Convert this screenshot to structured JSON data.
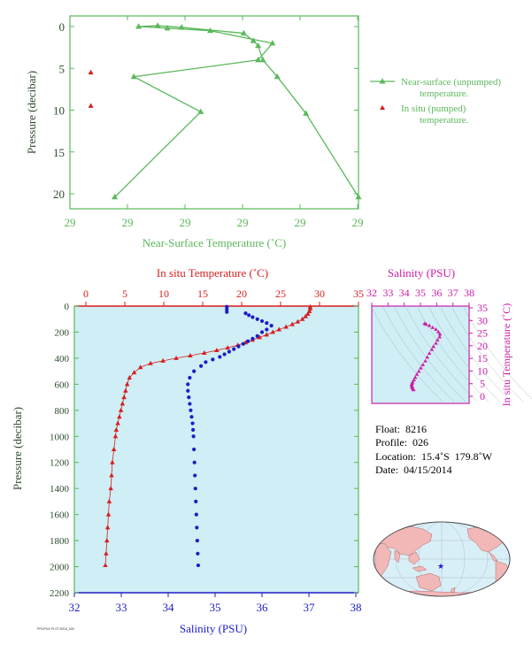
{
  "colors": {
    "green": "#5bb85b",
    "red": "#d81e1e",
    "blue": "#1c1cc8",
    "magenta": "#cc1fa6",
    "axis_dark": "#2e4a2e",
    "plot_bg": "#cfeef5",
    "land": "#f2b8b8",
    "ocean": "#d9eff7"
  },
  "chart_data": [
    {
      "id": "near-surface",
      "type": "line",
      "xlabel": "Near-Surface Temperature (˚C)",
      "ylabel": "Pressure (decibar)",
      "x_tick_labels": [
        "29",
        "29",
        "29",
        "29",
        "29",
        "29"
      ],
      "y_ticks": [
        0,
        5,
        10,
        15,
        20
      ],
      "ylim": [
        0,
        22
      ],
      "legend": {
        "position": "right",
        "entries": [
          {
            "label_lines": [
              "Near-surface (unpumped)",
              "temperature."
            ]
          },
          {
            "label_lines": [
              "In situ (pumped)",
              "temperature."
            ]
          }
        ]
      },
      "series": [
        {
          "kind": "line-triangle",
          "points": [
            {
              "x": 0.3,
              "y": 20.4
            },
            {
              "x": 0.19,
              "y": 10.4
            },
            {
              "x": 0.13,
              "y": 6.0
            },
            {
              "x": 0.1,
              "y": 4.0
            },
            {
              "x": 0.09,
              "y": 2.3
            },
            {
              "x": 0.08,
              "y": 1.7
            },
            {
              "x": 0.06,
              "y": 0.8
            },
            {
              "x": -0.07,
              "y": 0.1
            },
            {
              "x": -0.12,
              "y": -0.1
            },
            {
              "x": -0.16,
              "y": 0.0
            },
            {
              "x": -0.1,
              "y": 0.2
            },
            {
              "x": -0.01,
              "y": 0.5
            },
            {
              "x": 0.12,
              "y": 2.0
            },
            {
              "x": 0.09,
              "y": 4.0
            },
            {
              "x": -0.17,
              "y": 6.0
            },
            {
              "x": -0.03,
              "y": 10.2
            },
            {
              "x": -0.21,
              "y": 20.4
            }
          ],
          "note": "x values are relative temperature offsets read from the axis (labels all round to 29)"
        },
        {
          "kind": "triangle",
          "points": [
            {
              "x": -0.26,
              "y": 5.5
            },
            {
              "x": -0.26,
              "y": 9.5
            }
          ]
        }
      ]
    },
    {
      "id": "profile",
      "type": "scatter",
      "top_xlabel": "In situ Temperature (˚C)",
      "bottom_xlabel": "Salinity (PSU)",
      "ylabel": "Pressure (decibar)",
      "temperature_ticks": [
        0,
        5,
        10,
        15,
        20,
        25,
        30,
        35
      ],
      "salinity_ticks": [
        32,
        33,
        34,
        35,
        36,
        37,
        38
      ],
      "pressure_ticks": [
        0,
        200,
        400,
        600,
        800,
        1000,
        1200,
        1400,
        1600,
        1800,
        2000,
        2200
      ],
      "temperature_range": [
        -1.5,
        35
      ],
      "salinity_range": [
        32,
        38
      ],
      "pressure_range": [
        0,
        2200
      ],
      "temperature": [
        [
          28.8,
          5
        ],
        [
          28.8,
          20
        ],
        [
          28.7,
          40
        ],
        [
          28.5,
          60
        ],
        [
          28.2,
          80
        ],
        [
          27.8,
          100
        ],
        [
          27.2,
          120
        ],
        [
          26.5,
          140
        ],
        [
          25.7,
          160
        ],
        [
          24.8,
          180
        ],
        [
          24.0,
          200
        ],
        [
          23.2,
          220
        ],
        [
          22.3,
          240
        ],
        [
          21.4,
          260
        ],
        [
          20.5,
          280
        ],
        [
          19.5,
          300
        ],
        [
          18.2,
          320
        ],
        [
          16.8,
          340
        ],
        [
          15.2,
          360
        ],
        [
          13.4,
          380
        ],
        [
          11.6,
          400
        ],
        [
          9.9,
          420
        ],
        [
          8.3,
          440
        ],
        [
          7.0,
          470
        ],
        [
          6.2,
          510
        ],
        [
          5.6,
          550
        ],
        [
          5.3,
          600
        ],
        [
          5.1,
          650
        ],
        [
          4.9,
          700
        ],
        [
          4.7,
          750
        ],
        [
          4.5,
          800
        ],
        [
          4.3,
          850
        ],
        [
          4.1,
          900
        ],
        [
          3.9,
          950
        ],
        [
          3.8,
          1000
        ],
        [
          3.6,
          1100
        ],
        [
          3.4,
          1200
        ],
        [
          3.3,
          1300
        ],
        [
          3.2,
          1400
        ],
        [
          3.0,
          1500
        ],
        [
          2.9,
          1600
        ],
        [
          2.8,
          1700
        ],
        [
          2.7,
          1800
        ],
        [
          2.6,
          1900
        ],
        [
          2.5,
          1990
        ]
      ],
      "salinity": [
        [
          35.25,
          5
        ],
        [
          35.25,
          25
        ],
        [
          35.25,
          45
        ],
        [
          35.65,
          55
        ],
        [
          35.72,
          70
        ],
        [
          35.8,
          85
        ],
        [
          35.9,
          100
        ],
        [
          36.0,
          115
        ],
        [
          36.1,
          130
        ],
        [
          36.2,
          150
        ],
        [
          36.1,
          180
        ],
        [
          36.0,
          200
        ],
        [
          35.9,
          230
        ],
        [
          35.8,
          250
        ],
        [
          35.7,
          270
        ],
        [
          35.6,
          290
        ],
        [
          35.5,
          310
        ],
        [
          35.4,
          330
        ],
        [
          35.3,
          350
        ],
        [
          35.2,
          370
        ],
        [
          35.1,
          390
        ],
        [
          34.95,
          410
        ],
        [
          34.8,
          430
        ],
        [
          34.7,
          460
        ],
        [
          34.55,
          500
        ],
        [
          34.46,
          550
        ],
        [
          34.42,
          600
        ],
        [
          34.42,
          650
        ],
        [
          34.44,
          700
        ],
        [
          34.46,
          750
        ],
        [
          34.48,
          800
        ],
        [
          34.5,
          850
        ],
        [
          34.52,
          900
        ],
        [
          34.53,
          950
        ],
        [
          34.54,
          1000
        ],
        [
          34.55,
          1100
        ],
        [
          34.56,
          1200
        ],
        [
          34.57,
          1300
        ],
        [
          34.58,
          1400
        ],
        [
          34.59,
          1500
        ],
        [
          34.6,
          1600
        ],
        [
          34.61,
          1700
        ],
        [
          34.62,
          1800
        ],
        [
          34.63,
          1900
        ],
        [
          34.64,
          1990
        ]
      ]
    },
    {
      "id": "ts-diagram",
      "type": "scatter",
      "title": "Salinity (PSU)",
      "ylabel": "In situ Temperature (˚C)",
      "salinity_ticks": [
        32,
        33,
        34,
        35,
        36,
        37,
        38
      ],
      "temperature_ticks": [
        0,
        5,
        10,
        15,
        20,
        25,
        30,
        35
      ],
      "xlim": [
        32,
        38
      ],
      "ylim": [
        0,
        35
      ],
      "points": [
        [
          35.25,
          28.8
        ],
        [
          35.35,
          28.5
        ],
        [
          35.55,
          28.0
        ],
        [
          35.75,
          27.2
        ],
        [
          35.95,
          26.5
        ],
        [
          36.1,
          25.5
        ],
        [
          36.2,
          24.6
        ],
        [
          36.18,
          23.5
        ],
        [
          36.05,
          22.3
        ],
        [
          35.95,
          21.0
        ],
        [
          35.8,
          19.7
        ],
        [
          35.7,
          18.5
        ],
        [
          35.55,
          17.0
        ],
        [
          35.42,
          15.5
        ],
        [
          35.3,
          14.0
        ],
        [
          35.15,
          12.5
        ],
        [
          35.02,
          11.2
        ],
        [
          34.9,
          9.9
        ],
        [
          34.78,
          8.7
        ],
        [
          34.68,
          7.5
        ],
        [
          34.6,
          6.5
        ],
        [
          34.52,
          5.7
        ],
        [
          34.48,
          5.1
        ],
        [
          34.46,
          4.7
        ],
        [
          34.46,
          4.3
        ],
        [
          34.48,
          3.9
        ],
        [
          34.5,
          3.5
        ],
        [
          34.52,
          3.2
        ],
        [
          34.55,
          2.9
        ],
        [
          34.58,
          2.6
        ]
      ]
    }
  ],
  "float_info": {
    "float": "Float:  8216",
    "profile": "Profile:  026",
    "location": "Location:  15.4˚S  179.8˚W",
    "date": "Date:  04/15/2014"
  },
  "footnote": "PROFILE PLOT 8216_026"
}
